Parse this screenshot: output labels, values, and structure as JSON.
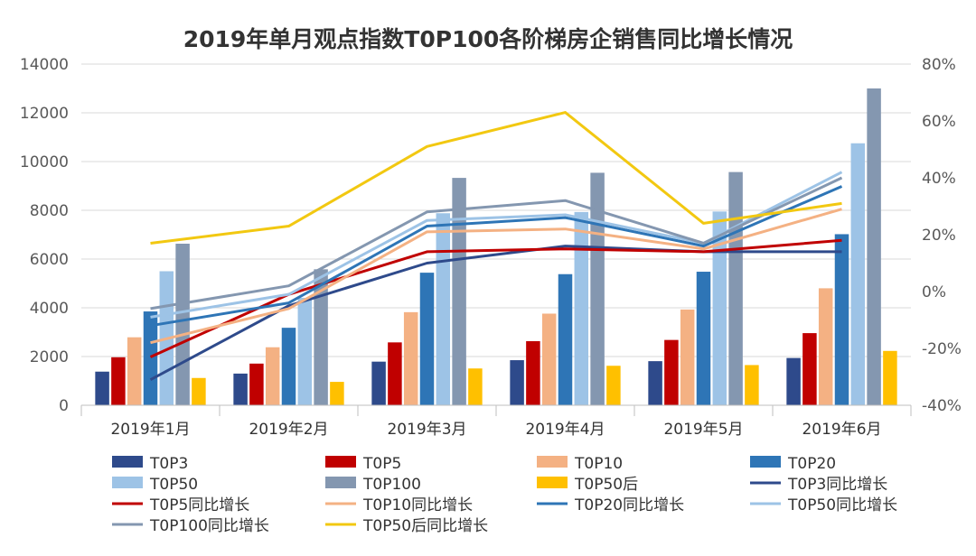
{
  "chart_data": {
    "type": "bar",
    "title": "2019年单月观点指数T0P100各阶梯房企销售同比增长情况",
    "categories": [
      "2019年1月",
      "2019年2月",
      "2019年3月",
      "2019年4月",
      "2019年5月",
      "2019年6月"
    ],
    "ylim": [
      0,
      14000
    ],
    "y_ticks": [
      "0",
      "2000",
      "4000",
      "6000",
      "8000",
      "10000",
      "12000",
      "14000"
    ],
    "y2lim": [
      -40,
      80
    ],
    "y2_ticks": [
      "-40%",
      "-20%",
      "0%",
      "20%",
      "40%",
      "60%",
      "80%"
    ],
    "legend_position": "bottom",
    "grid": true,
    "bar_series": [
      {
        "name": "T0P3",
        "color": "#2E4A8B",
        "values": [
          1380,
          1300,
          1790,
          1850,
          1810,
          1940
        ]
      },
      {
        "name": "T0P5",
        "color": "#C00000",
        "values": [
          1970,
          1710,
          2580,
          2630,
          2680,
          2960
        ]
      },
      {
        "name": "T0P10",
        "color": "#F4B183",
        "values": [
          2790,
          2380,
          3820,
          3760,
          3930,
          4800
        ]
      },
      {
        "name": "T0P20",
        "color": "#2E75B6",
        "values": [
          3850,
          3180,
          5440,
          5380,
          5480,
          7020
        ]
      },
      {
        "name": "T0P50",
        "color": "#9DC3E6",
        "values": [
          5500,
          4410,
          7880,
          7930,
          7950,
          10750
        ]
      },
      {
        "name": "T0P100",
        "color": "#8497B0",
        "values": [
          6630,
          5580,
          9330,
          9540,
          9570,
          13000
        ]
      },
      {
        "name": "T0P50后",
        "color": "#FFC000",
        "values": [
          1120,
          960,
          1510,
          1620,
          1650,
          2230
        ]
      }
    ],
    "line_series": [
      {
        "name": "T0P3同比增长",
        "color": "#2E4A8B",
        "values": [
          -31,
          -5,
          10,
          16,
          14,
          14
        ]
      },
      {
        "name": "T0P5同比增长",
        "color": "#C00000",
        "values": [
          -23,
          -1,
          14,
          15,
          14,
          18
        ]
      },
      {
        "name": "T0P10同比增长",
        "color": "#F4B183",
        "values": [
          -18,
          -6,
          21,
          22,
          15,
          29
        ]
      },
      {
        "name": "T0P20同比增长",
        "color": "#2E75B6",
        "values": [
          -12,
          -4,
          23,
          26,
          16,
          37
        ]
      },
      {
        "name": "T0P50同比增长",
        "color": "#9DC3E6",
        "values": [
          -9,
          -1,
          25,
          27,
          17,
          42
        ]
      },
      {
        "name": "T0P100同比增长",
        "color": "#8497B0",
        "values": [
          -6,
          2,
          28,
          32,
          17,
          40
        ]
      },
      {
        "name": "T0P50后同比增长",
        "color": "#F2C811",
        "values": [
          17,
          23,
          51,
          63,
          24,
          31
        ]
      }
    ]
  }
}
